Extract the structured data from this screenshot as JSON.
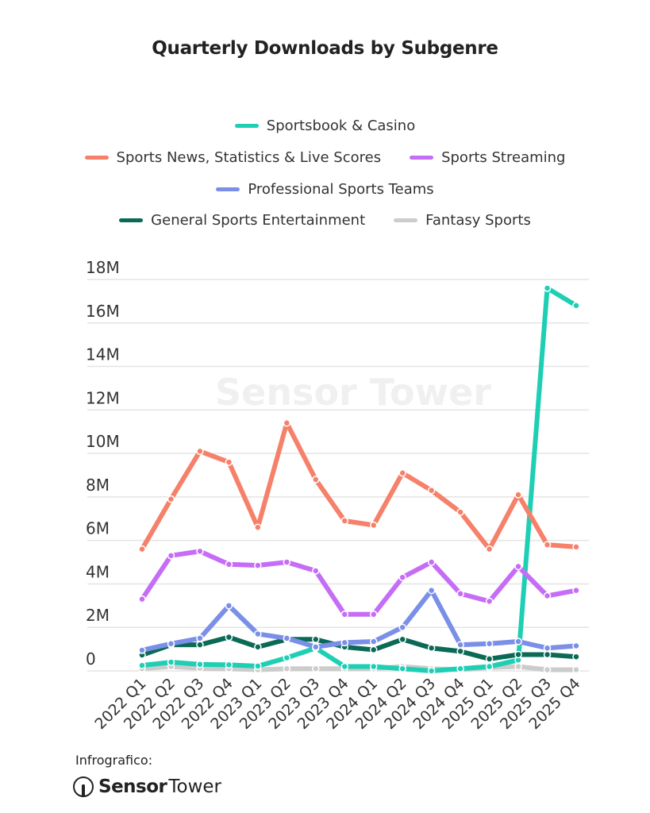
{
  "chart_data": {
    "type": "line",
    "title": "Quarterly Downloads by Subgenre",
    "xlabel": "",
    "ylabel": "",
    "ylim": [
      0,
      18000000
    ],
    "yticks": [
      0,
      2000000,
      4000000,
      6000000,
      8000000,
      10000000,
      12000000,
      14000000,
      16000000,
      18000000
    ],
    "ytick_labels": [
      "0",
      "2M",
      "4M",
      "6M",
      "8M",
      "10M",
      "12M",
      "14M",
      "16M",
      "18M"
    ],
    "grid": true,
    "legend_position": "top-center",
    "categories": [
      "2022 Q1",
      "2022 Q2",
      "2022 Q3",
      "2022 Q4",
      "2023 Q1",
      "2023 Q2",
      "2023 Q3",
      "2023 Q4",
      "2024 Q1",
      "2024 Q2",
      "2024 Q3",
      "2024 Q4",
      "2025 Q1",
      "2025 Q2",
      "2025 Q3",
      "2025 Q4"
    ],
    "series": [
      {
        "name": "Sportsbook & Casino",
        "color": "#1ecfb4",
        "values": [
          250000,
          400000,
          300000,
          280000,
          220000,
          600000,
          1050000,
          200000,
          200000,
          100000,
          0,
          100000,
          200000,
          500000,
          17600000,
          16800000
        ]
      },
      {
        "name": "Sports News, Statistics & Live Scores",
        "color": "#f6816a",
        "values": [
          5600000,
          7900000,
          10100000,
          9600000,
          6600000,
          11400000,
          8800000,
          6900000,
          6700000,
          9100000,
          8300000,
          7300000,
          5600000,
          8100000,
          5800000,
          5700000
        ]
      },
      {
        "name": "Sports Streaming",
        "color": "#c56df6",
        "values": [
          3300000,
          5300000,
          5500000,
          4900000,
          4850000,
          5000000,
          4600000,
          2600000,
          2600000,
          4300000,
          5000000,
          3550000,
          3200000,
          4800000,
          3450000,
          3700000
        ]
      },
      {
        "name": "Professional Sports Teams",
        "color": "#7a8fe8",
        "values": [
          950000,
          1250000,
          1500000,
          3000000,
          1700000,
          1500000,
          1100000,
          1300000,
          1350000,
          2000000,
          3700000,
          1200000,
          1250000,
          1350000,
          1050000,
          1150000
        ]
      },
      {
        "name": "General Sports Entertainment",
        "color": "#0b6a56",
        "values": [
          730000,
          1200000,
          1200000,
          1550000,
          1100000,
          1450000,
          1450000,
          1100000,
          970000,
          1450000,
          1050000,
          900000,
          550000,
          750000,
          750000,
          650000
        ]
      },
      {
        "name": "Fantasy Sports",
        "color": "#cccccc",
        "values": [
          100000,
          200000,
          120000,
          100000,
          50000,
          100000,
          100000,
          100000,
          100000,
          200000,
          100000,
          50000,
          150000,
          200000,
          50000,
          50000
        ]
      }
    ]
  },
  "watermark": "Sensor Tower",
  "footer": {
    "label": "Infrografico:",
    "logo_bold": "Sensor",
    "logo_light": "Tower"
  }
}
